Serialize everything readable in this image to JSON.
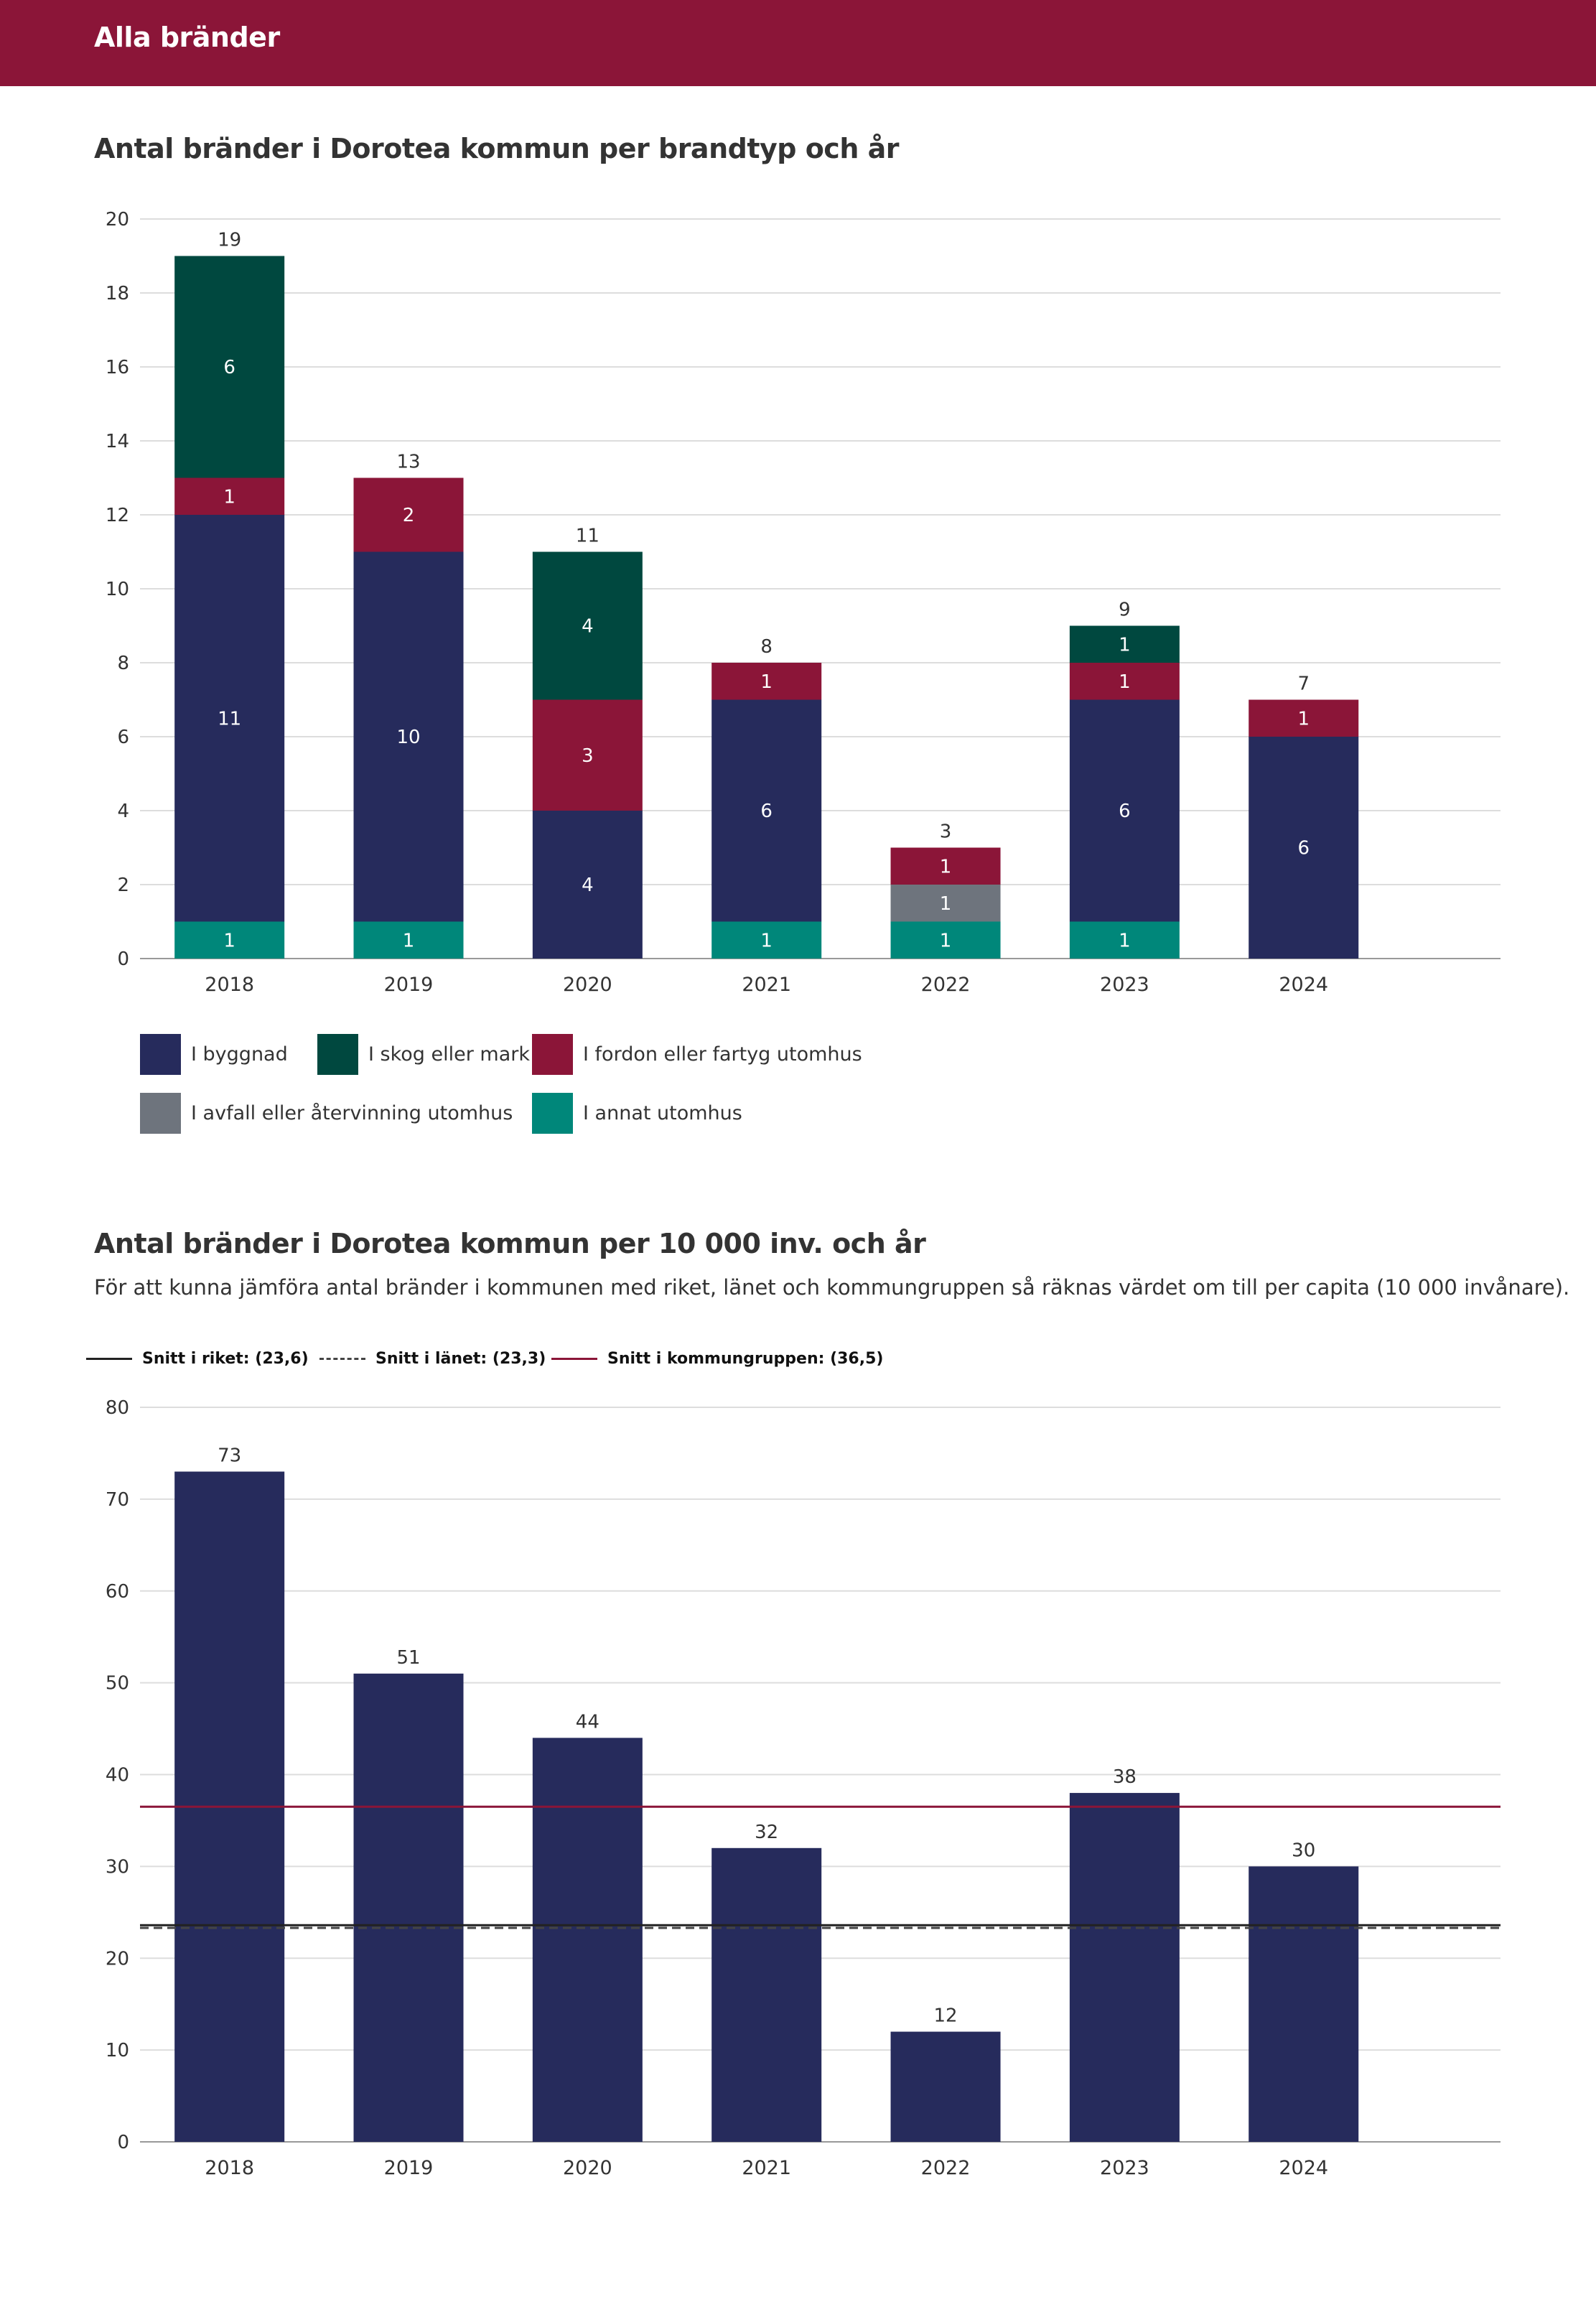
{
  "header": {
    "title": "Alla bränder"
  },
  "colors": {
    "header_bg": "#8b1538",
    "byggnad": "#262b5c",
    "skog": "#00483f",
    "fordon": "#8b1538",
    "avfall": "#6e747d",
    "annat": "#00877a",
    "riket_line": "#222222",
    "lanet_line": "#444444",
    "kommungrupp_line": "#8b1538"
  },
  "chart_data": [
    {
      "type": "bar",
      "stacked": true,
      "title": "Antal bränder i Dorotea kommun per brandtyp och år",
      "categories": [
        "2018",
        "2019",
        "2020",
        "2021",
        "2022",
        "2023",
        "2024"
      ],
      "series": [
        {
          "name": "I annat utomhus",
          "key": "annat",
          "values": [
            1,
            1,
            0,
            1,
            1,
            1,
            0
          ]
        },
        {
          "name": "I avfall eller återvinning utomhus",
          "key": "avfall",
          "values": [
            0,
            0,
            0,
            0,
            1,
            0,
            0
          ]
        },
        {
          "name": "I byggnad",
          "key": "byggnad",
          "values": [
            11,
            10,
            4,
            6,
            0,
            6,
            6
          ]
        },
        {
          "name": "I fordon eller fartyg utomhus",
          "key": "fordon",
          "values": [
            1,
            2,
            3,
            1,
            1,
            1,
            1
          ]
        },
        {
          "name": "I skog eller mark",
          "key": "skog",
          "values": [
            6,
            0,
            4,
            0,
            0,
            1,
            0
          ]
        }
      ],
      "totals": [
        19,
        13,
        11,
        8,
        3,
        9,
        7
      ],
      "ylim": [
        0,
        20
      ],
      "yticks": [
        "0",
        "2",
        "4",
        "6",
        "8",
        "10",
        "12",
        "14",
        "16",
        "18",
        "20"
      ],
      "legend": [
        {
          "label": "I byggnad",
          "key": "byggnad"
        },
        {
          "label": "I skog eller mark",
          "key": "skog"
        },
        {
          "label": "I fordon eller fartyg utomhus",
          "key": "fordon"
        },
        {
          "label": "I avfall eller återvinning utomhus",
          "key": "avfall"
        },
        {
          "label": "I annat utomhus",
          "key": "annat"
        }
      ]
    },
    {
      "type": "bar",
      "title": "Antal bränder i Dorotea kommun per 10 000 inv. och år",
      "subtitle": "För att kunna jämföra antal bränder i kommunen med riket, länet och kommungruppen så räknas värdet om till per capita (10 000 invånare).",
      "categories": [
        "2018",
        "2019",
        "2020",
        "2021",
        "2022",
        "2023",
        "2024"
      ],
      "values": [
        73,
        51,
        44,
        32,
        12,
        38,
        30
      ],
      "value_labels": [
        "73",
        "51",
        "44",
        "32",
        "12",
        "38",
        "30"
      ],
      "ylim": [
        0,
        80
      ],
      "yticks": [
        "0",
        "10",
        "20",
        "30",
        "40",
        "50",
        "60",
        "70",
        "80"
      ],
      "reference_lines": [
        {
          "label": "Snitt i riket: (23,6)",
          "value": 23.6,
          "style": "solid",
          "key": "riket_line"
        },
        {
          "label": "Snitt i länet: (23,3)",
          "value": 23.3,
          "style": "dashed",
          "key": "lanet_line"
        },
        {
          "label": "Snitt i kommungruppen: (36,5)",
          "value": 36.5,
          "style": "solid",
          "key": "kommungrupp_line"
        }
      ]
    }
  ]
}
